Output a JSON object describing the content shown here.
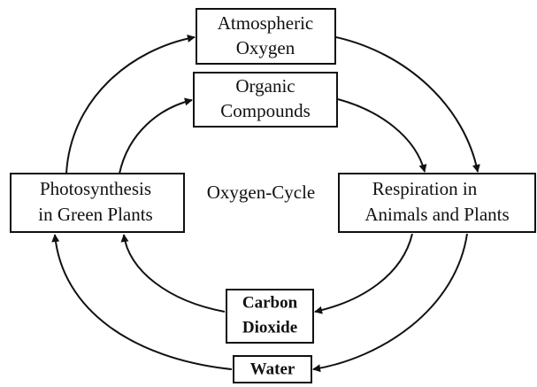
{
  "nodes": [
    {
      "label": [
        "Atmospheric",
        "Oxygen"
      ]
    },
    {
      "label": [
        "Organic",
        "Compounds"
      ]
    },
    {
      "label": [
        "Photosynthesis",
        "in Green Plants"
      ]
    },
    {
      "label": [
        "Respiration in",
        "Animals and Plants"
      ]
    },
    {
      "label": [
        "Carbon",
        "Dioxide"
      ]
    },
    {
      "label": [
        "Water"
      ]
    }
  ],
  "center_label": "Oxygen-Cycle"
}
